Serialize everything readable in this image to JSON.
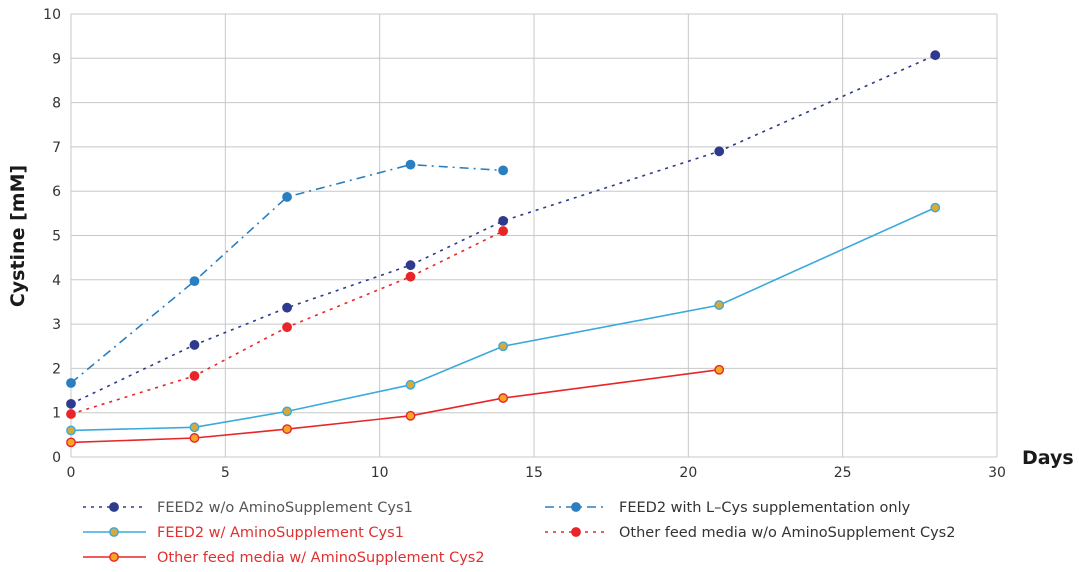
{
  "chart_data": {
    "type": "line",
    "title": "",
    "xlabel": "Days",
    "ylabel": "Cystine [mM]",
    "xlim": [
      0,
      30
    ],
    "ylim": [
      0,
      10
    ],
    "x_ticks": [
      0,
      5,
      10,
      15,
      20,
      25,
      30
    ],
    "y_ticks": [
      0,
      1,
      2,
      3,
      4,
      5,
      6,
      7,
      8,
      9,
      10
    ],
    "grid": true,
    "legend_position": "bottom",
    "series": [
      {
        "name": "FEED2 w/o AminoSupplement Cys1",
        "color": "#2e3a8c",
        "marker_fill": "#2e3a8c",
        "line_style": "dotted",
        "label_color": "#555555",
        "x": [
          0,
          4,
          7,
          11,
          14,
          21,
          28
        ],
        "y": [
          1.2,
          2.53,
          3.37,
          4.33,
          5.33,
          6.9,
          9.07
        ]
      },
      {
        "name": "FEED2 with L–Cys supplementation only",
        "color": "#2a7fc0",
        "marker_fill": "#2a7fc0",
        "line_style": "dashdot",
        "label_color": "#333333",
        "x": [
          0,
          4,
          7,
          11,
          14
        ],
        "y": [
          1.67,
          3.97,
          5.87,
          6.6,
          6.47
        ]
      },
      {
        "name": "FEED2 w/ AminoSupplement Cys1",
        "color": "#3aa9dc",
        "marker_fill": "#d8a93a",
        "line_style": "solid",
        "label_color": "#e03030",
        "x": [
          0,
          4,
          7,
          11,
          14,
          21,
          28
        ],
        "y": [
          0.6,
          0.67,
          1.03,
          1.63,
          2.5,
          3.43,
          5.63
        ]
      },
      {
        "name": "Other feed media w/o AminoSupplement Cys2",
        "color": "#e8262a",
        "marker_fill": "#e8262a",
        "line_style": "dotted",
        "label_color": "#333333",
        "x": [
          0,
          4,
          7,
          11,
          14
        ],
        "y": [
          0.97,
          1.83,
          2.93,
          4.07,
          5.1
        ]
      },
      {
        "name": "Other feed media w/ AminoSupplement Cys2",
        "color": "#e8262a",
        "marker_fill": "#f5a623",
        "line_style": "solid",
        "label_color": "#e03030",
        "x": [
          0,
          4,
          7,
          11,
          14,
          21
        ],
        "y": [
          0.33,
          0.43,
          0.63,
          0.93,
          1.33,
          1.97
        ]
      }
    ]
  }
}
